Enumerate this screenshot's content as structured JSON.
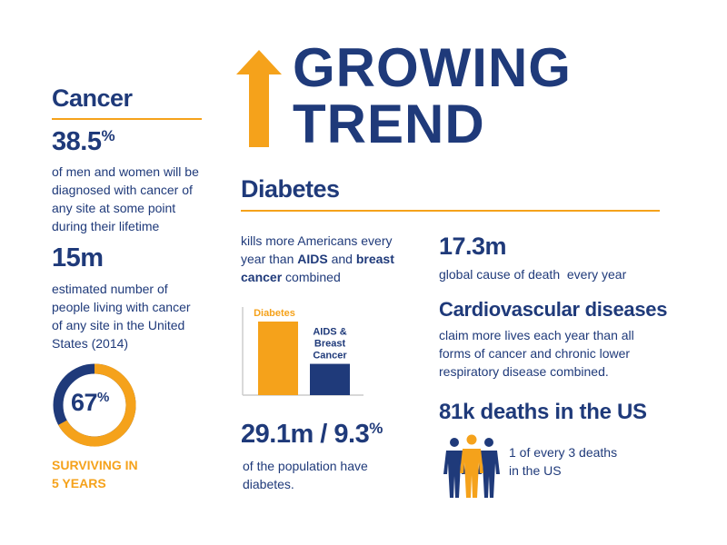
{
  "title": [
    "GROWING",
    "TREND"
  ],
  "cancer": {
    "heading": "Cancer",
    "stat1": {
      "number": "38.5",
      "unit": "%",
      "lines": [
        "of men and women will be",
        "diagnosed with cancer of",
        "any site at some point",
        "during their lifetime"
      ]
    },
    "stat2": {
      "number": "15m",
      "lines": [
        "estimated number of",
        "people living with cancer",
        "of any site in the United",
        "States (2014)"
      ]
    },
    "donut": {
      "value": 67,
      "unit": "%",
      "caption": [
        "SURVIVING IN",
        "5 YEARS"
      ]
    }
  },
  "diabetes": {
    "heading": "Diabetes",
    "intro": [
      [
        {
          "text": "kills more Americans every"
        }
      ],
      [
        {
          "text": "year than "
        },
        {
          "text": "AIDS",
          "bold": true
        },
        {
          "text": " and "
        },
        {
          "text": "breast",
          "bold": true
        }
      ],
      [
        {
          "text": "cancer",
          "bold": true
        },
        {
          "text": " combined"
        }
      ]
    ],
    "bars": {
      "categories": [
        "Diabetes",
        "AIDS & Breast Cancer"
      ],
      "label_lines": [
        [
          "Diabetes"
        ],
        [
          "AIDS &",
          "Breast",
          "Cancer"
        ]
      ],
      "values": [
        80,
        34
      ],
      "colors": [
        "#f5a21b",
        "#1f3a7a"
      ]
    },
    "stat": {
      "number": "29.1m / 9.3",
      "unit": "%",
      "lines": [
        "of the population have",
        "diabetes."
      ]
    }
  },
  "cardio": {
    "number": "17.3m",
    "line": "global cause of death  every year",
    "heading": "Cardiovascular diseases",
    "lines": [
      "claim more lives each year than all",
      "forms of cancer and chronic lower",
      "respiratory disease combined."
    ],
    "deaths": "81k deaths in the US",
    "ratio": [
      "1 of every 3 deaths",
      "in the US"
    ]
  }
}
